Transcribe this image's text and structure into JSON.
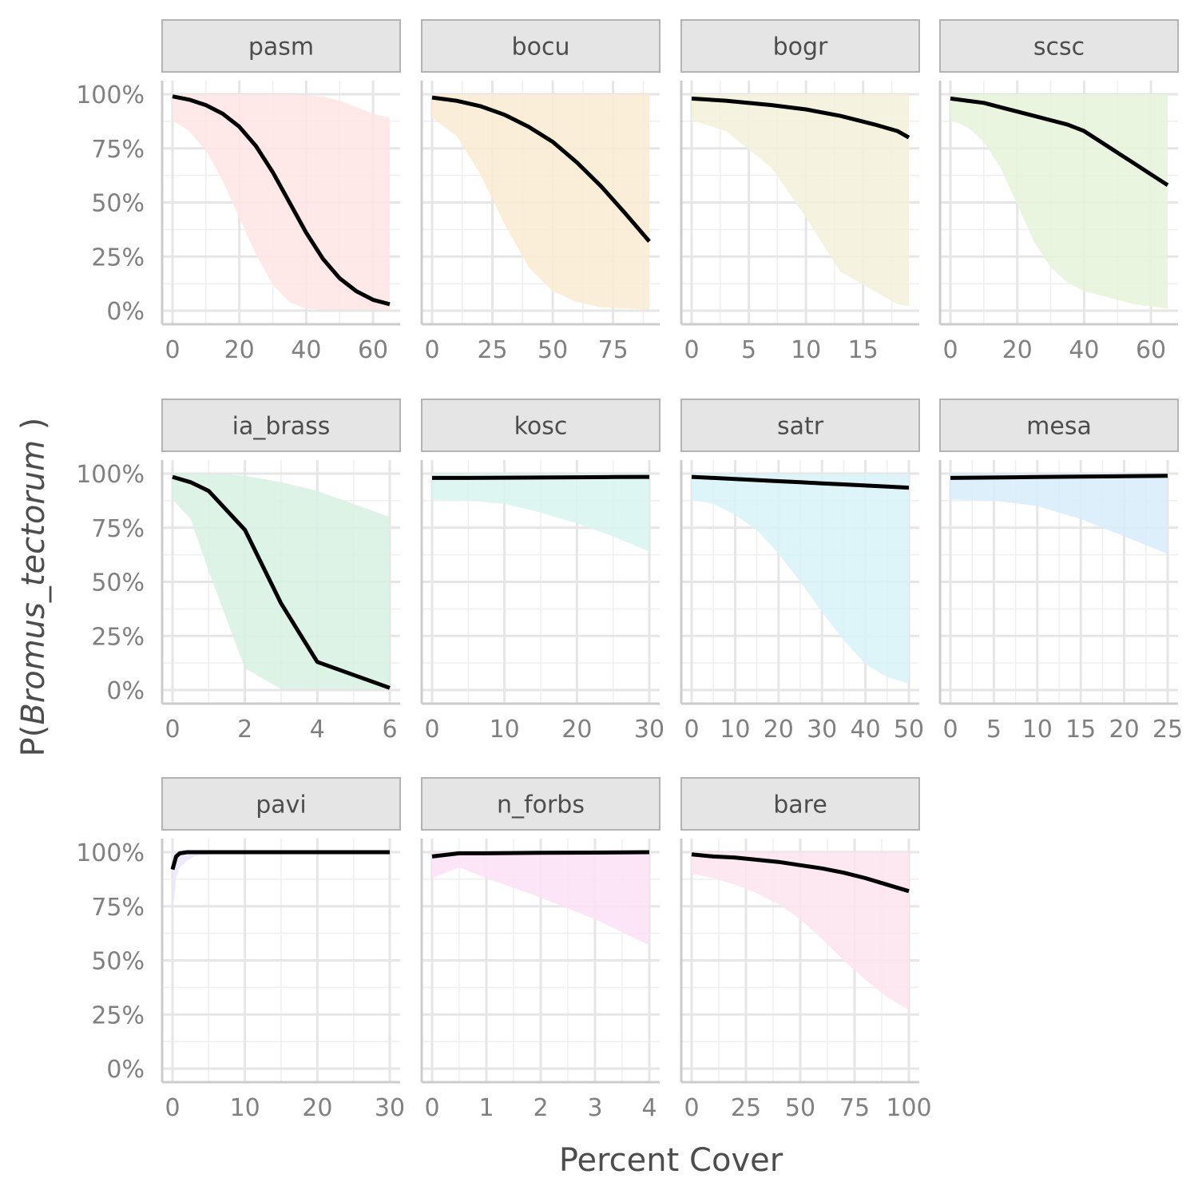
{
  "chart_data": {
    "type": "line",
    "xlabel": "Percent Cover",
    "ylabel_prefix": "P(",
    "ylabel_italic": "Bromus_tectorum",
    "ylabel_suffix": " )",
    "y_ticks": [
      0,
      0.25,
      0.5,
      0.75,
      1
    ],
    "y_tick_labels": [
      "0%",
      "25%",
      "50%",
      "75%",
      "100%"
    ],
    "ylim": [
      0,
      1
    ],
    "grid": true,
    "panels": [
      {
        "name": "pasm",
        "fill": "#ffe4e4",
        "xlim": [
          0,
          65
        ],
        "x_ticks": [
          0,
          20,
          40,
          60
        ],
        "x_tick_labels": [
          "0",
          "20",
          "40",
          "60"
        ],
        "x": [
          0,
          5,
          10,
          15,
          20,
          25,
          30,
          35,
          40,
          45,
          50,
          55,
          60,
          65
        ],
        "y": [
          0.99,
          0.975,
          0.95,
          0.91,
          0.85,
          0.76,
          0.64,
          0.5,
          0.36,
          0.24,
          0.15,
          0.09,
          0.05,
          0.03
        ],
        "lower": [
          0.88,
          0.83,
          0.74,
          0.6,
          0.43,
          0.26,
          0.12,
          0.04,
          0.01,
          0.005,
          0.005,
          0.005,
          0.005,
          0.005
        ],
        "upper": [
          1,
          1,
          1,
          1,
          1,
          1,
          1,
          1,
          0.995,
          0.99,
          0.97,
          0.94,
          0.91,
          0.89
        ]
      },
      {
        "name": "bocu",
        "fill": "#faebd1",
        "xlim": [
          0,
          90
        ],
        "x_ticks": [
          0,
          25,
          50,
          75
        ],
        "x_tick_labels": [
          "0",
          "25",
          "50",
          "75"
        ],
        "x": [
          0,
          10,
          20,
          30,
          40,
          50,
          60,
          70,
          80,
          90
        ],
        "y": [
          0.985,
          0.97,
          0.945,
          0.905,
          0.85,
          0.78,
          0.685,
          0.575,
          0.45,
          0.32
        ],
        "lower": [
          0.89,
          0.81,
          0.63,
          0.4,
          0.2,
          0.09,
          0.04,
          0.015,
          0.01,
          0.005
        ],
        "upper": [
          1,
          1,
          1,
          1,
          1,
          1,
          1,
          1,
          1,
          1
        ]
      },
      {
        "name": "bogr",
        "fill": "#f3f0d9",
        "xlim": [
          0,
          19
        ],
        "x_ticks": [
          0,
          5,
          10,
          15
        ],
        "x_tick_labels": [
          "0",
          "5",
          "10",
          "15"
        ],
        "x": [
          0,
          3,
          7,
          10,
          13,
          16,
          18,
          19
        ],
        "y": [
          0.98,
          0.97,
          0.95,
          0.93,
          0.9,
          0.86,
          0.83,
          0.8
        ],
        "lower": [
          0.88,
          0.83,
          0.66,
          0.43,
          0.18,
          0.09,
          0.03,
          0.02
        ],
        "upper": [
          1,
          1,
          1,
          1,
          1,
          1,
          1,
          1
        ]
      },
      {
        "name": "scsc",
        "fill": "#e5f3d8",
        "xlim": [
          0,
          65
        ],
        "x_ticks": [
          0,
          20,
          40,
          60
        ],
        "x_tick_labels": [
          "0",
          "20",
          "40",
          "60"
        ],
        "x": [
          0,
          5,
          10,
          15,
          20,
          25,
          30,
          35,
          40,
          45,
          50,
          55,
          60,
          65
        ],
        "y": [
          0.98,
          0.97,
          0.96,
          0.94,
          0.92,
          0.9,
          0.88,
          0.86,
          0.83,
          0.78,
          0.73,
          0.68,
          0.63,
          0.58
        ],
        "lower": [
          0.88,
          0.85,
          0.78,
          0.66,
          0.49,
          0.32,
          0.2,
          0.13,
          0.09,
          0.07,
          0.05,
          0.03,
          0.02,
          0.01
        ],
        "upper": [
          1,
          1,
          1,
          1,
          1,
          1,
          1,
          1,
          1,
          1,
          1,
          1,
          1,
          1
        ]
      },
      {
        "name": "ia_brass",
        "fill": "#d6f1e2",
        "xlim": [
          0,
          6
        ],
        "x_ticks": [
          0,
          2,
          4,
          6
        ],
        "x_tick_labels": [
          "0",
          "2",
          "4",
          "6"
        ],
        "x": [
          0,
          0.5,
          1,
          2,
          3,
          4,
          6
        ],
        "y": [
          0.985,
          0.96,
          0.92,
          0.74,
          0.4,
          0.13,
          0.01
        ],
        "lower": [
          0.88,
          0.79,
          0.55,
          0.1,
          0.005,
          0.005,
          0.005
        ],
        "upper": [
          1,
          1,
          1,
          0.99,
          0.96,
          0.92,
          0.8
        ]
      },
      {
        "name": "kosc",
        "fill": "#d8f4ee",
        "xlim": [
          0,
          30
        ],
        "x_ticks": [
          0,
          10,
          20,
          30
        ],
        "x_tick_labels": [
          "0",
          "10",
          "20",
          "30"
        ],
        "x": [
          0,
          5,
          10,
          15,
          20,
          25,
          30
        ],
        "y": [
          0.98,
          0.98,
          0.981,
          0.982,
          0.983,
          0.984,
          0.985
        ],
        "lower": [
          0.88,
          0.875,
          0.86,
          0.82,
          0.77,
          0.71,
          0.64
        ],
        "upper": [
          1,
          1,
          1,
          1,
          1,
          1,
          1
        ]
      },
      {
        "name": "satr",
        "fill": "#d7f2f7",
        "xlim": [
          0,
          50
        ],
        "x_ticks": [
          0,
          10,
          20,
          30,
          40,
          50
        ],
        "x_tick_labels": [
          "0",
          "10",
          "20",
          "30",
          "40",
          "50"
        ],
        "x": [
          0,
          5,
          10,
          15,
          20,
          25,
          30,
          35,
          40,
          45,
          50
        ],
        "y": [
          0.985,
          0.98,
          0.975,
          0.97,
          0.965,
          0.96,
          0.955,
          0.95,
          0.945,
          0.94,
          0.935
        ],
        "lower": [
          0.88,
          0.86,
          0.81,
          0.74,
          0.63,
          0.5,
          0.36,
          0.23,
          0.12,
          0.06,
          0.03
        ],
        "upper": [
          1,
          1,
          1,
          1,
          1,
          1,
          1,
          1,
          1,
          1,
          1
        ]
      },
      {
        "name": "mesa",
        "fill": "#d6ecfa",
        "xlim": [
          0,
          25
        ],
        "x_ticks": [
          0,
          5,
          10,
          15,
          20,
          25
        ],
        "x_tick_labels": [
          "0",
          "5",
          "10",
          "15",
          "20",
          "25"
        ],
        "x": [
          0,
          5,
          10,
          15,
          20,
          25
        ],
        "y": [
          0.98,
          0.982,
          0.984,
          0.986,
          0.988,
          0.99
        ],
        "lower": [
          0.88,
          0.875,
          0.85,
          0.79,
          0.71,
          0.63
        ],
        "upper": [
          1,
          1,
          1,
          1,
          1,
          1
        ]
      },
      {
        "name": "pavi",
        "fill": "#ebe6fb",
        "xlim": [
          0,
          30
        ],
        "x_ticks": [
          0,
          10,
          20,
          30
        ],
        "x_tick_labels": [
          "0",
          "10",
          "20",
          "30"
        ],
        "x": [
          0,
          0.5,
          1,
          2,
          3,
          5,
          10,
          20,
          30
        ],
        "y": [
          0.92,
          0.98,
          0.995,
          1,
          1,
          1,
          1,
          1,
          1
        ],
        "lower": [
          0.7,
          0.88,
          0.93,
          0.96,
          0.98,
          0.99,
          1,
          1,
          1
        ],
        "upper": [
          1,
          1,
          1,
          1,
          1,
          1,
          1,
          1,
          1
        ]
      },
      {
        "name": "n_forbs",
        "fill": "#fbe0f6",
        "xlim": [
          0,
          4
        ],
        "x_ticks": [
          0,
          1,
          2,
          3,
          4
        ],
        "x_tick_labels": [
          "0",
          "1",
          "2",
          "3",
          "4"
        ],
        "x": [
          0,
          0.5,
          1,
          2,
          3,
          4
        ],
        "y": [
          0.98,
          0.995,
          0.995,
          0.997,
          0.998,
          1
        ],
        "lower": [
          0.88,
          0.93,
          0.88,
          0.79,
          0.69,
          0.57
        ],
        "upper": [
          1,
          1,
          1,
          1,
          1,
          1
        ]
      },
      {
        "name": "bare",
        "fill": "#fde4ef",
        "xlim": [
          0,
          100
        ],
        "x_ticks": [
          0,
          25,
          50,
          75,
          100
        ],
        "x_tick_labels": [
          "0",
          "25",
          "50",
          "75",
          "100"
        ],
        "x": [
          0,
          10,
          20,
          30,
          40,
          50,
          60,
          70,
          80,
          90,
          100
        ],
        "y": [
          0.99,
          0.98,
          0.975,
          0.965,
          0.955,
          0.94,
          0.925,
          0.905,
          0.88,
          0.85,
          0.82
        ],
        "lower": [
          0.9,
          0.88,
          0.85,
          0.81,
          0.76,
          0.69,
          0.6,
          0.5,
          0.41,
          0.33,
          0.27
        ],
        "upper": [
          1,
          1,
          1,
          1,
          1,
          1,
          1,
          1,
          1,
          1,
          1
        ]
      }
    ]
  }
}
